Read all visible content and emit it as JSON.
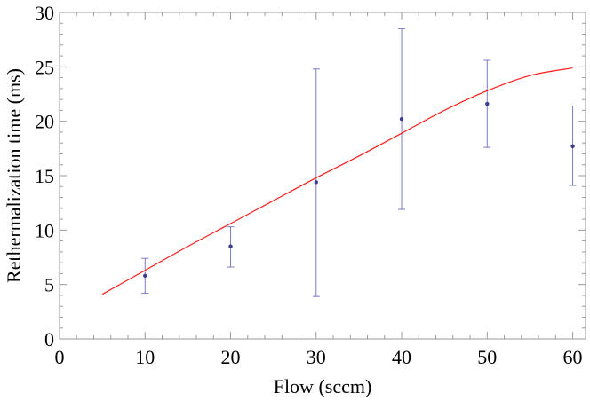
{
  "chart_data": {
    "type": "scatter",
    "title": "",
    "xlabel": "Flow (sccm)",
    "ylabel": "Rethermalization time (ms)",
    "xlim": [
      0,
      61.5
    ],
    "ylim": [
      0,
      30
    ],
    "x_ticks": [
      0,
      10,
      20,
      30,
      40,
      50,
      60
    ],
    "y_ticks": [
      0,
      5,
      10,
      15,
      20,
      25,
      30
    ],
    "grid": false,
    "colors": {
      "points": "#3b3b8f",
      "errorbars": "#7b7bc0",
      "fit": "#ff1a1a"
    },
    "series": [
      {
        "kind": "points-with-errorbars",
        "points": [
          {
            "x": 10,
            "y": 5.8,
            "ylow": 4.2,
            "yhigh": 7.4
          },
          {
            "x": 20,
            "y": 8.5,
            "ylow": 6.6,
            "yhigh": 10.3
          },
          {
            "x": 30,
            "y": 14.4,
            "ylow": 3.9,
            "yhigh": 24.8
          },
          {
            "x": 40,
            "y": 20.2,
            "ylow": 11.9,
            "yhigh": 28.5
          },
          {
            "x": 50,
            "y": 21.6,
            "ylow": 17.6,
            "yhigh": 25.6
          },
          {
            "x": 60,
            "y": 17.7,
            "ylow": 14.1,
            "yhigh": 21.4
          }
        ]
      },
      {
        "kind": "line",
        "x": [
          5,
          10,
          15,
          20,
          25,
          30,
          35,
          40,
          45,
          50,
          55,
          60
        ],
        "y": [
          4.1,
          6.3,
          8.5,
          10.6,
          12.7,
          14.8,
          16.8,
          18.9,
          21.0,
          22.8,
          24.2,
          24.9
        ]
      }
    ]
  }
}
